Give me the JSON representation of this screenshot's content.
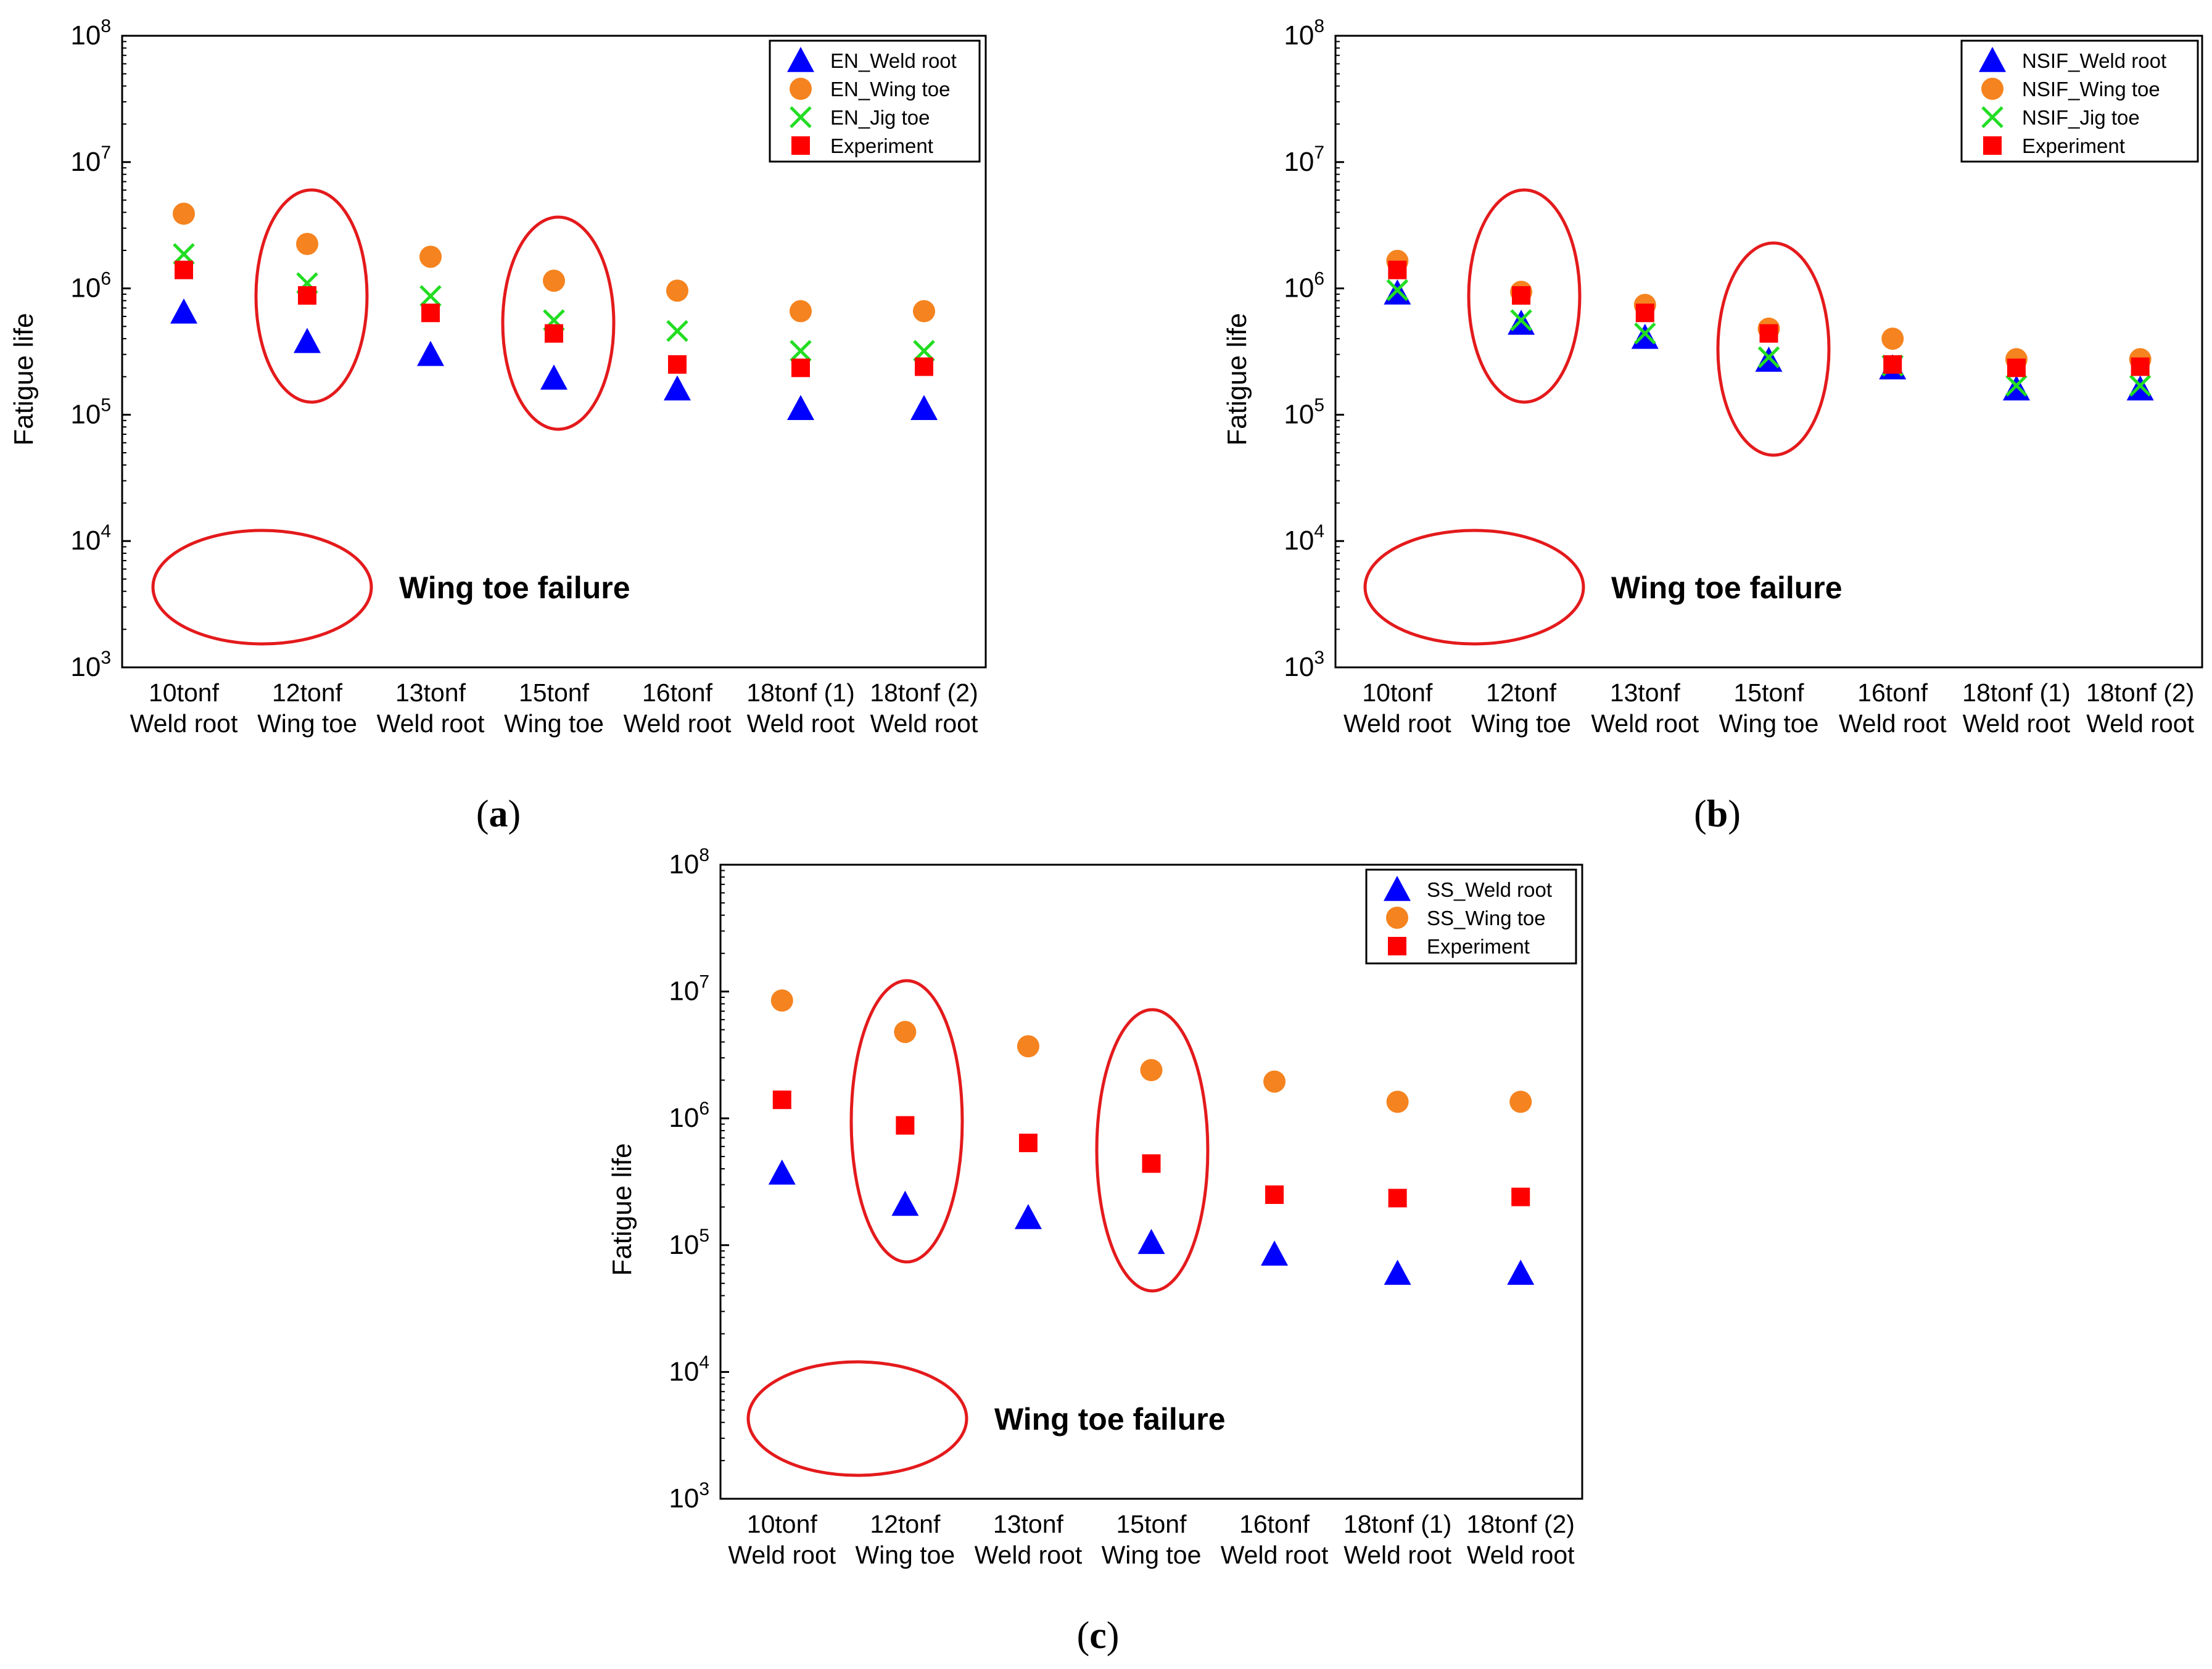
{
  "categories": [
    {
      "line1": "10tonf",
      "line2": "Weld root"
    },
    {
      "line1": "12tonf",
      "line2": "Wing toe"
    },
    {
      "line1": "13tonf",
      "line2": "Weld root"
    },
    {
      "line1": "15tonf",
      "line2": "Wing toe"
    },
    {
      "line1": "16tonf",
      "line2": "Weld root"
    },
    {
      "line1": "18tonf (1)",
      "line2": "Weld root"
    },
    {
      "line1": "18tonf (2)",
      "line2": "Weld root"
    }
  ],
  "colors": {
    "blue": "#0000ff",
    "orange": "#f5831f",
    "green": "#22dd22",
    "red": "#ff0000",
    "ellipse": "#e41a1c"
  },
  "chart_data": [
    {
      "type": "scatter",
      "panel": "a",
      "caption": "a",
      "ylabel": "Fatigue life",
      "yscale": "log",
      "ylim": [
        1000,
        100000000
      ],
      "yticks": [
        {
          "base": "10",
          "exp": "3"
        },
        {
          "base": "10",
          "exp": "4"
        },
        {
          "base": "10",
          "exp": "5"
        },
        {
          "base": "10",
          "exp": "6"
        },
        {
          "base": "10",
          "exp": "7"
        },
        {
          "base": "10",
          "exp": "8"
        }
      ],
      "annotation": "Wing toe failure",
      "highlighted_categories": [
        1,
        3
      ],
      "series": [
        {
          "name": "EN_Weld root",
          "marker": "triangle",
          "color": "#0000ff",
          "values": [
            650000,
            380000,
            300000,
            195000,
            160000,
            112000,
            112000
          ]
        },
        {
          "name": "EN_Wing toe",
          "marker": "circle",
          "color": "#f5831f",
          "values": [
            3900000,
            2250000,
            1780000,
            1150000,
            960000,
            660000,
            660000
          ]
        },
        {
          "name": "EN_Jig toe",
          "marker": "cross",
          "color": "#22dd22",
          "values": [
            1870000,
            1100000,
            870000,
            560000,
            460000,
            320000,
            320000
          ]
        },
        {
          "name": "Experiment",
          "marker": "square",
          "color": "#ff0000",
          "values": [
            1400000,
            880000,
            640000,
            440000,
            250000,
            235000,
            240000
          ]
        }
      ]
    },
    {
      "type": "scatter",
      "panel": "b",
      "caption": "b",
      "ylabel": "Fatigue life",
      "yscale": "log",
      "ylim": [
        1000,
        100000000
      ],
      "yticks": [
        {
          "base": "10",
          "exp": "3"
        },
        {
          "base": "10",
          "exp": "4"
        },
        {
          "base": "10",
          "exp": "5"
        },
        {
          "base": "10",
          "exp": "6"
        },
        {
          "base": "10",
          "exp": "7"
        },
        {
          "base": "10",
          "exp": "8"
        }
      ],
      "annotation": "Wing toe failure",
      "highlighted_categories": [
        1,
        3
      ],
      "series": [
        {
          "name": "NSIF_Weld root",
          "marker": "triangle",
          "color": "#0000ff",
          "values": [
            920000,
            530000,
            410000,
            270000,
            235000,
            160000,
            160000
          ]
        },
        {
          "name": "NSIF_Wing toe",
          "marker": "circle",
          "color": "#f5831f",
          "values": [
            1650000,
            940000,
            740000,
            480000,
            400000,
            275000,
            275000
          ]
        },
        {
          "name": "NSIF_Jig toe",
          "marker": "cross",
          "color": "#22dd22",
          "values": [
            970000,
            560000,
            440000,
            285000,
            245000,
            170000,
            170000
          ]
        },
        {
          "name": "Experiment",
          "marker": "square",
          "color": "#ff0000",
          "values": [
            1400000,
            880000,
            640000,
            440000,
            250000,
            235000,
            240000
          ]
        }
      ]
    },
    {
      "type": "scatter",
      "panel": "c",
      "caption": "c",
      "ylabel": "Fatigue life",
      "yscale": "log",
      "ylim": [
        1000,
        100000000
      ],
      "yticks": [
        {
          "base": "10",
          "exp": "3"
        },
        {
          "base": "10",
          "exp": "4"
        },
        {
          "base": "10",
          "exp": "5"
        },
        {
          "base": "10",
          "exp": "6"
        },
        {
          "base": "10",
          "exp": "7"
        },
        {
          "base": "10",
          "exp": "8"
        }
      ],
      "annotation": "Wing toe failure",
      "highlighted_categories": [
        1,
        3
      ],
      "series": [
        {
          "name": "SS_Weld root",
          "marker": "triangle",
          "color": "#0000ff",
          "values": [
            370000,
            210000,
            165000,
            105000,
            85000,
            60000,
            60000
          ]
        },
        {
          "name": "SS_Wing toe",
          "marker": "circle",
          "color": "#f5831f",
          "values": [
            8500000,
            4800000,
            3700000,
            2400000,
            1950000,
            1350000,
            1350000
          ]
        },
        {
          "name": "Experiment",
          "marker": "square",
          "color": "#ff0000",
          "values": [
            1400000,
            880000,
            640000,
            440000,
            250000,
            235000,
            240000
          ]
        }
      ]
    }
  ]
}
